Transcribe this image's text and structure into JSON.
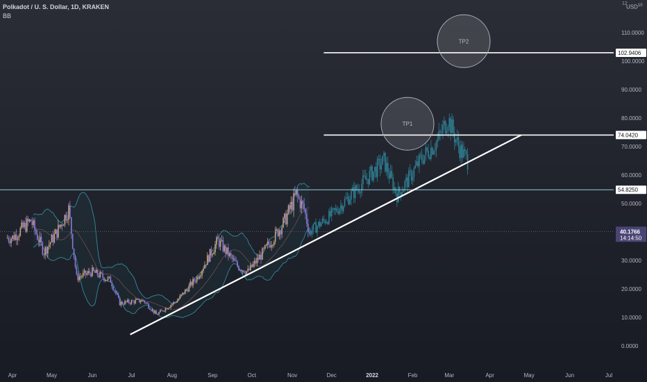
{
  "header": {
    "title": "Polkadot / U. S. Dollar, 1D, KRAKEN",
    "indicator": "BB",
    "currency": "USD",
    "currency_sup": "10",
    "currency_num": "12"
  },
  "colors": {
    "candle_up": "#c9a27c",
    "candle_down": "#8b7bd8",
    "projection": "#2f7f93",
    "band": "#3aa3b8",
    "trendline": "#ffffff",
    "level_line": "#ffffff",
    "support_line": "#8fd3e0",
    "current_badge": "#4a4475"
  },
  "chart_data": {
    "type": "candlestick",
    "y_axis": {
      "ticks": [
        0,
        10,
        20,
        30,
        40,
        50,
        60,
        70,
        80,
        90,
        100,
        110
      ],
      "tick_labels": [
        "0.0000",
        "10.0000",
        "20.0000",
        "30.0000",
        "40.0000",
        "50.0000",
        "60.0000",
        "70.0000",
        "80.0000",
        "90.0000",
        "100.0000",
        "110.0000"
      ],
      "ylim": [
        -2,
        120
      ]
    },
    "x_axis": {
      "months": [
        "Apr",
        "May",
        "Jun",
        "Jul",
        "Aug",
        "Sep",
        "Oct",
        "Nov",
        "Dec",
        "2022",
        "Feb",
        "Mar",
        "Apr",
        "May",
        "Jun",
        "Jul"
      ],
      "bold": [
        "2022"
      ]
    },
    "price_path": [
      {
        "date": "2021-04-01",
        "price": 38
      },
      {
        "date": "2021-04-15",
        "price": 44
      },
      {
        "date": "2021-04-25",
        "price": 33
      },
      {
        "date": "2021-05-05",
        "price": 40
      },
      {
        "date": "2021-05-14",
        "price": 48
      },
      {
        "date": "2021-05-20",
        "price": 24
      },
      {
        "date": "2021-06-01",
        "price": 26
      },
      {
        "date": "2021-06-15",
        "price": 23
      },
      {
        "date": "2021-06-22",
        "price": 15
      },
      {
        "date": "2021-07-10",
        "price": 16
      },
      {
        "date": "2021-07-20",
        "price": 11
      },
      {
        "date": "2021-08-05",
        "price": 16
      },
      {
        "date": "2021-08-20",
        "price": 24
      },
      {
        "date": "2021-09-05",
        "price": 37
      },
      {
        "date": "2021-09-20",
        "price": 28
      },
      {
        "date": "2021-09-28",
        "price": 26
      },
      {
        "date": "2021-10-10",
        "price": 33
      },
      {
        "date": "2021-10-25",
        "price": 43
      },
      {
        "date": "2021-11-04",
        "price": 53
      },
      {
        "date": "2021-11-10",
        "price": 48
      },
      {
        "date": "2021-11-14",
        "price": 40
      }
    ],
    "projection_path": [
      {
        "date": "2021-11-14",
        "price": 40
      },
      {
        "date": "2021-12-01",
        "price": 46
      },
      {
        "date": "2021-12-20",
        "price": 55
      },
      {
        "date": "2022-01-10",
        "price": 65
      },
      {
        "date": "2022-01-20",
        "price": 53
      },
      {
        "date": "2022-01-28",
        "price": 58
      },
      {
        "date": "2022-02-08",
        "price": 66
      },
      {
        "date": "2022-02-20",
        "price": 72
      },
      {
        "date": "2022-02-28",
        "price": 80
      },
      {
        "date": "2022-03-08",
        "price": 70
      },
      {
        "date": "2022-03-15",
        "price": 65
      }
    ],
    "levels": [
      {
        "label": "102.9406",
        "value": 102.9406
      },
      {
        "label": "74.0420",
        "value": 74.042
      },
      {
        "label": "54.8250",
        "value": 54.825
      }
    ],
    "current_price": {
      "label": "40.1766",
      "countdown": "14:14:50",
      "value": 40.1766
    },
    "trendline": {
      "from": {
        "date": "2021-06-30",
        "price": 4
      },
      "to": {
        "date": "2022-04-25",
        "price": 74.042
      }
    },
    "targets": [
      {
        "label": "TP1",
        "date": "2022-01-28",
        "price": 78
      },
      {
        "label": "TP2",
        "date": "2022-03-12",
        "price": 107
      }
    ]
  }
}
